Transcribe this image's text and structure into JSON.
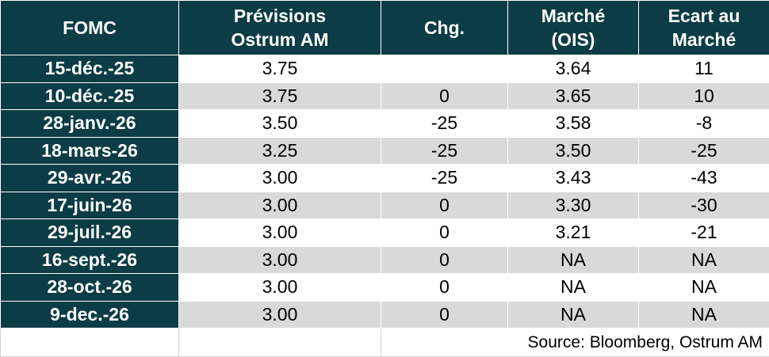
{
  "table": {
    "header": [
      "FOMC",
      "Prévisions\nOstrum AM",
      "Chg.",
      "Marché\n(OIS)",
      "Ecart au\nMarché"
    ],
    "rows": [
      [
        "15-déc.-25",
        "3.75",
        null,
        "3.64",
        "11"
      ],
      [
        "10-déc.-25",
        "3.75",
        "0",
        "3.65",
        "10"
      ],
      [
        "28-janv.-26",
        "3.50",
        "-25",
        "3.58",
        "-8"
      ],
      [
        "18-mars-26",
        "3.25",
        "-25",
        "3.50",
        "-25"
      ],
      [
        "29-avr.-26",
        "3.00",
        "-25",
        "3.43",
        "-43"
      ],
      [
        "17-juin-26",
        "3.00",
        "0",
        "3.30",
        "-30"
      ],
      [
        "29-juil.-26",
        "3.00",
        "0",
        "3.21",
        "-21"
      ],
      [
        "16-sept.-26",
        "3.00",
        "0",
        "NA",
        "NA"
      ],
      [
        "28-oct.-26",
        "3.00",
        "0",
        "NA",
        "NA"
      ],
      [
        "9-dec.-26",
        "3.00",
        "0",
        "NA",
        "NA"
      ]
    ],
    "source": "Source: Bloomberg, Ostrum AM"
  }
}
